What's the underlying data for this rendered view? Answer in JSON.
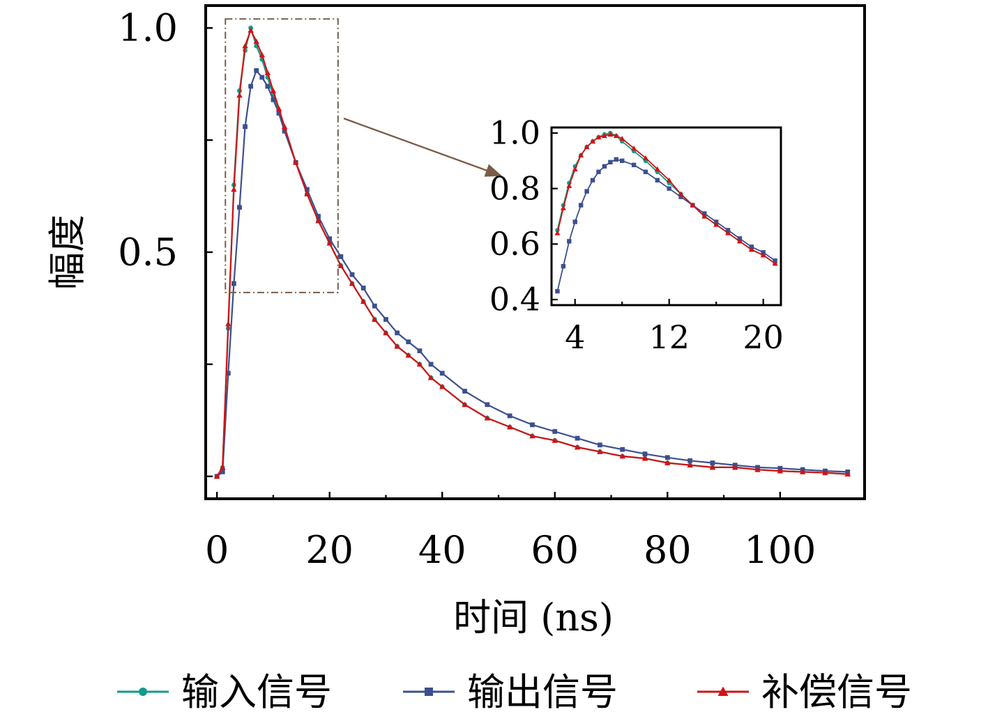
{
  "chart_data": [
    {
      "type": "line",
      "title": "",
      "xlabel": "时间 (ns)",
      "ylabel": "幅度",
      "xlim": [
        -2,
        115
      ],
      "ylim": [
        -0.05,
        1.05
      ],
      "x_ticks": [
        0,
        20,
        40,
        60,
        80,
        100
      ],
      "x_tick_labels": [
        "0",
        "20",
        "40",
        "60",
        "80",
        "100"
      ],
      "y_ticks": [
        0.0,
        0.25,
        0.5,
        0.75,
        1.0
      ],
      "y_tick_labels": [
        "",
        "",
        "0.5",
        "",
        "1.0"
      ],
      "grid": false,
      "legend_position": "bottom",
      "annotations": [
        "dash-dot zoom box over x 1.5–21.5, y 0.41–1.02, arrow pointing to inset"
      ],
      "series": [
        {
          "name": "输入信号",
          "color": "#119b8a",
          "marker": "circle",
          "x": [
            0,
            1,
            2,
            3,
            4,
            5,
            6,
            7,
            8,
            9,
            10,
            11,
            12,
            14,
            16,
            18,
            20,
            22,
            24,
            26,
            28,
            30,
            32,
            34,
            36,
            38,
            40,
            44,
            48,
            52,
            56,
            60,
            64,
            68,
            72,
            76,
            80,
            84,
            88,
            92,
            96,
            100,
            104,
            108,
            112
          ],
          "y": [
            0.0,
            0.02,
            0.33,
            0.65,
            0.86,
            0.95,
            1.0,
            0.96,
            0.93,
            0.89,
            0.85,
            0.81,
            0.77,
            0.7,
            0.63,
            0.57,
            0.52,
            0.47,
            0.43,
            0.39,
            0.35,
            0.32,
            0.29,
            0.27,
            0.25,
            0.22,
            0.2,
            0.16,
            0.13,
            0.11,
            0.09,
            0.08,
            0.065,
            0.055,
            0.045,
            0.04,
            0.03,
            0.025,
            0.02,
            0.02,
            0.015,
            0.012,
            0.01,
            0.008,
            0.005
          ]
        },
        {
          "name": "输出信号",
          "color": "#3c4f8f",
          "marker": "square",
          "x": [
            0,
            1,
            2,
            3,
            4,
            5,
            6,
            7,
            8,
            9,
            10,
            11,
            12,
            14,
            16,
            18,
            20,
            22,
            24,
            26,
            28,
            30,
            32,
            34,
            36,
            38,
            40,
            44,
            48,
            52,
            56,
            60,
            64,
            68,
            72,
            76,
            80,
            84,
            88,
            92,
            96,
            100,
            104,
            108,
            112
          ],
          "y": [
            0.0,
            0.01,
            0.23,
            0.43,
            0.6,
            0.78,
            0.87,
            0.905,
            0.89,
            0.87,
            0.84,
            0.81,
            0.77,
            0.7,
            0.64,
            0.58,
            0.53,
            0.49,
            0.45,
            0.42,
            0.38,
            0.35,
            0.32,
            0.3,
            0.28,
            0.25,
            0.23,
            0.19,
            0.16,
            0.135,
            0.115,
            0.1,
            0.085,
            0.07,
            0.06,
            0.05,
            0.042,
            0.035,
            0.03,
            0.025,
            0.02,
            0.018,
            0.015,
            0.012,
            0.01
          ]
        },
        {
          "name": "补偿信号",
          "color": "#d11313",
          "marker": "triangle",
          "x": [
            0,
            1,
            2,
            3,
            4,
            5,
            6,
            7,
            8,
            9,
            10,
            11,
            12,
            14,
            16,
            18,
            20,
            22,
            24,
            26,
            28,
            30,
            32,
            34,
            36,
            38,
            40,
            44,
            48,
            52,
            56,
            60,
            64,
            68,
            72,
            76,
            80,
            84,
            88,
            92,
            96,
            100,
            104,
            108,
            112
          ],
          "y": [
            0.0,
            0.02,
            0.34,
            0.64,
            0.85,
            0.96,
            0.995,
            0.97,
            0.94,
            0.9,
            0.86,
            0.82,
            0.78,
            0.7,
            0.63,
            0.57,
            0.52,
            0.47,
            0.43,
            0.39,
            0.35,
            0.32,
            0.29,
            0.27,
            0.25,
            0.22,
            0.2,
            0.16,
            0.13,
            0.11,
            0.09,
            0.08,
            0.065,
            0.055,
            0.045,
            0.04,
            0.03,
            0.025,
            0.02,
            0.02,
            0.015,
            0.012,
            0.01,
            0.008,
            0.005
          ]
        }
      ]
    },
    {
      "type": "line",
      "title": "",
      "xlabel": "",
      "ylabel": "",
      "xlim": [
        2,
        21.5
      ],
      "ylim": [
        0.38,
        1.02
      ],
      "x_ticks": [
        4,
        12,
        20
      ],
      "x_tick_labels": [
        "4",
        "12",
        "20"
      ],
      "y_ticks": [
        0.4,
        0.6,
        0.8,
        1.0
      ],
      "y_tick_labels": [
        "0.4",
        "0.6",
        "0.8",
        "1.0"
      ],
      "grid": false,
      "legend_position": "none",
      "series": [
        {
          "name": "输入信号",
          "color": "#119b8a",
          "marker": "circle",
          "x": [
            2.5,
            3,
            3.5,
            4,
            4.5,
            5,
            5.5,
            6,
            6.5,
            7,
            7.5,
            8,
            9,
            10,
            11,
            12,
            13,
            14,
            15,
            16,
            17,
            18,
            19,
            20,
            21
          ],
          "y": [
            0.65,
            0.74,
            0.82,
            0.88,
            0.92,
            0.95,
            0.97,
            0.985,
            0.995,
            1.0,
            0.99,
            0.97,
            0.935,
            0.9,
            0.86,
            0.82,
            0.78,
            0.74,
            0.7,
            0.67,
            0.64,
            0.61,
            0.58,
            0.56,
            0.53
          ]
        },
        {
          "name": "输出信号",
          "color": "#3c4f8f",
          "marker": "square",
          "x": [
            2.5,
            3,
            3.5,
            4,
            4.5,
            5,
            5.5,
            6,
            6.5,
            7,
            7.5,
            8,
            9,
            10,
            11,
            12,
            13,
            14,
            15,
            16,
            17,
            18,
            19,
            20,
            21
          ],
          "y": [
            0.43,
            0.52,
            0.61,
            0.68,
            0.74,
            0.79,
            0.83,
            0.86,
            0.88,
            0.895,
            0.905,
            0.9,
            0.885,
            0.86,
            0.83,
            0.8,
            0.77,
            0.74,
            0.71,
            0.68,
            0.65,
            0.62,
            0.59,
            0.57,
            0.54
          ]
        },
        {
          "name": "补偿信号",
          "color": "#d11313",
          "marker": "triangle",
          "x": [
            2.5,
            3,
            3.5,
            4,
            4.5,
            5,
            5.5,
            6,
            6.5,
            7,
            7.5,
            8,
            9,
            10,
            11,
            12,
            13,
            14,
            15,
            16,
            17,
            18,
            19,
            20,
            21
          ],
          "y": [
            0.64,
            0.73,
            0.81,
            0.87,
            0.92,
            0.95,
            0.97,
            0.985,
            0.99,
            0.995,
            0.99,
            0.98,
            0.945,
            0.91,
            0.87,
            0.83,
            0.78,
            0.74,
            0.7,
            0.67,
            0.64,
            0.61,
            0.58,
            0.56,
            0.53
          ]
        }
      ]
    }
  ]
}
